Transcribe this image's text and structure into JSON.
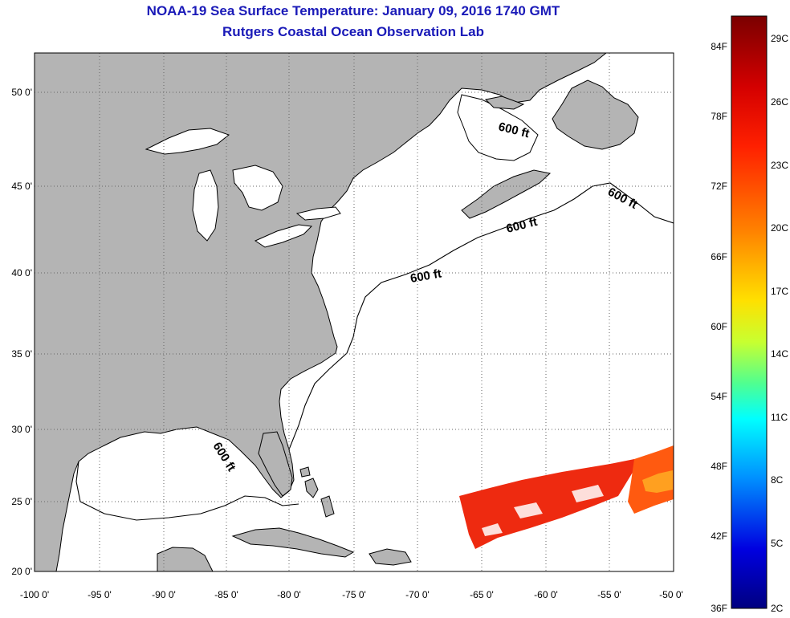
{
  "title_line1": "NOAA-19 Sea Surface Temperature:  January 09, 2016 1740 GMT",
  "title_line2": "Rutgers Coastal Ocean Observation Lab",
  "map": {
    "lon_range": [
      -100,
      -50
    ],
    "lat_range": [
      20,
      52
    ],
    "lon_ticks": [
      "-100 0'",
      "-95 0'",
      "-90 0'",
      "-85 0'",
      "-80 0'",
      "-75 0'",
      "-70 0'",
      "-65 0'",
      "-60 0'",
      "-55 0'",
      "-50 0'"
    ],
    "lat_ticks": [
      "50 0'",
      "45 0'",
      "40 0'",
      "35 0'",
      "30 0'",
      "25 0'",
      "20 0'"
    ],
    "land_color": "#b4b4b4",
    "grid": "dotted",
    "contour_labels": [
      "600 ft",
      "600 ft",
      "600 ft",
      "600 ft",
      "600 ft"
    ]
  },
  "colorbar": {
    "fahrenheit_labels": [
      "84F",
      "78F",
      "72F",
      "66F",
      "60F",
      "54F",
      "48F",
      "42F",
      "36F"
    ],
    "celsius_labels": [
      "29C",
      "26C",
      "23C",
      "20C",
      "17C",
      "14C",
      "11C",
      "8C",
      "5C",
      "2C"
    ],
    "colors": [
      "#7a0000",
      "#ff1a00",
      "#ff8000",
      "#ffff00",
      "#3cff9a",
      "#00ffff",
      "#0060ff",
      "#0000c8",
      "#000080"
    ]
  }
}
